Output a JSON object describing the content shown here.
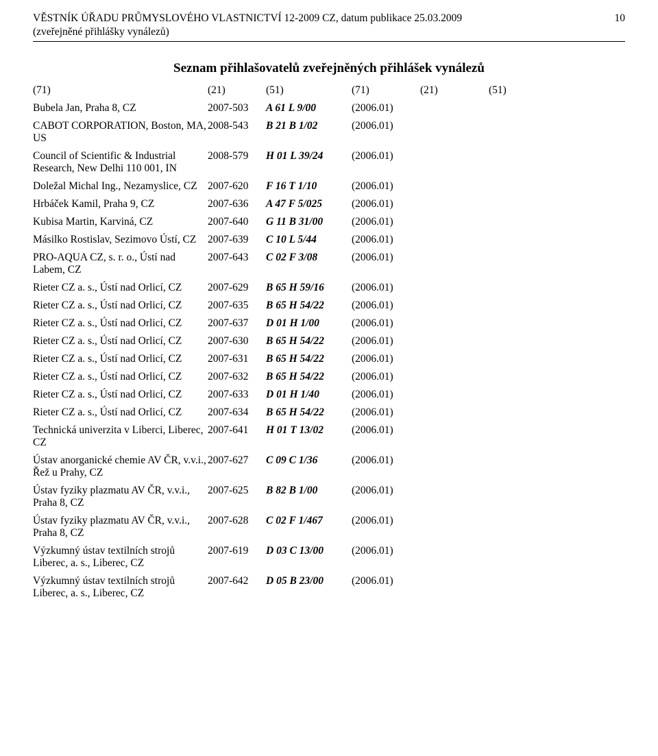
{
  "header": {
    "title": "VĚSTNÍK ÚŘADU PRŮMYSLOVÉHO VLASTNICTVÍ 12-2009 CZ, datum publikace 25.03.2009",
    "subtitle": "(zveřejněné přihlášky vynálezů)",
    "page_number": "10"
  },
  "section_title": "Seznam přihlašovatelů zveřejněných přihlášek vynálezů",
  "col_labels": [
    "(71)",
    "(21)",
    "(51)",
    "(71)",
    "(21)",
    "(51)"
  ],
  "rows": [
    {
      "name": "Bubela Jan, Praha 8, CZ",
      "appnum": "2007-503",
      "ipc": "A 61 L 9/00",
      "version": "(2006.01)"
    },
    {
      "name": "CABOT CORPORATION, Boston, MA, US",
      "appnum": "2008-543",
      "ipc": "B 21 B 1/02",
      "version": "(2006.01)"
    },
    {
      "name": "Council of Scientific & Industrial Research, New Delhi 110 001, IN",
      "appnum": "2008-579",
      "ipc": "H 01 L 39/24",
      "version": "(2006.01)"
    },
    {
      "name": "Doležal Michal Ing., Nezamyslice, CZ",
      "appnum": "2007-620",
      "ipc": "F 16 T 1/10",
      "version": "(2006.01)"
    },
    {
      "name": "Hrbáček Kamil, Praha 9, CZ",
      "appnum": "2007-636",
      "ipc": "A 47 F 5/025",
      "version": "(2006.01)"
    },
    {
      "name": "Kubisa Martin, Karviná, CZ",
      "appnum": "2007-640",
      "ipc": "G 11 B 31/00",
      "version": "(2006.01)"
    },
    {
      "name": "Másilko Rostislav, Sezimovo Ústí, CZ",
      "appnum": "2007-639",
      "ipc": "C 10 L 5/44",
      "version": "(2006.01)"
    },
    {
      "name": "PRO-AQUA CZ, s. r. o., Ústí nad Labem, CZ",
      "appnum": "2007-643",
      "ipc": "C 02 F 3/08",
      "version": "(2006.01)"
    },
    {
      "name": "Rieter CZ a. s., Ústí nad Orlicí, CZ",
      "appnum": "2007-629",
      "ipc": "B 65 H 59/16",
      "version": "(2006.01)"
    },
    {
      "name": "Rieter CZ a. s., Ústí nad Orlicí, CZ",
      "appnum": "2007-635",
      "ipc": "B 65 H 54/22",
      "version": "(2006.01)"
    },
    {
      "name": "Rieter CZ a. s., Ústí nad Orlicí, CZ",
      "appnum": "2007-637",
      "ipc": "D 01 H 1/00",
      "version": "(2006.01)"
    },
    {
      "name": "Rieter CZ a. s., Ústí nad Orlicí, CZ",
      "appnum": "2007-630",
      "ipc": "B 65 H 54/22",
      "version": "(2006.01)"
    },
    {
      "name": "Rieter CZ a. s., Ústí nad Orlicí, CZ",
      "appnum": "2007-631",
      "ipc": "B 65 H 54/22",
      "version": "(2006.01)"
    },
    {
      "name": "Rieter CZ a. s., Ústí nad Orlicí, CZ",
      "appnum": "2007-632",
      "ipc": "B 65 H 54/22",
      "version": "(2006.01)"
    },
    {
      "name": "Rieter CZ a. s., Ústí nad Orlicí, CZ",
      "appnum": "2007-633",
      "ipc": "D 01 H 1/40",
      "version": "(2006.01)"
    },
    {
      "name": "Rieter CZ a. s., Ústí nad Orlicí, CZ",
      "appnum": "2007-634",
      "ipc": "B 65 H 54/22",
      "version": "(2006.01)"
    },
    {
      "name": "Technická univerzita v Liberci, Liberec, CZ",
      "appnum": "2007-641",
      "ipc": "H 01 T 13/02",
      "version": "(2006.01)"
    },
    {
      "name": "Ústav anorganické chemie AV ČR, v.v.i., Řež u Prahy, CZ",
      "appnum": "2007-627",
      "ipc": "C 09 C 1/36",
      "version": "(2006.01)"
    },
    {
      "name": "Ústav fyziky plazmatu AV ČR, v.v.i., Praha 8, CZ",
      "appnum": "2007-625",
      "ipc": "B 82 B 1/00",
      "version": "(2006.01)"
    },
    {
      "name": "Ústav fyziky plazmatu AV ČR, v.v.i., Praha 8, CZ",
      "appnum": "2007-628",
      "ipc": "C 02 F 1/467",
      "version": "(2006.01)"
    },
    {
      "name": "Výzkumný ústav textilních strojů Liberec, a. s., Liberec, CZ",
      "appnum": "2007-619",
      "ipc": "D 03 C 13/00",
      "version": "(2006.01)"
    },
    {
      "name": "Výzkumný ústav textilních strojů Liberec, a. s., Liberec, CZ",
      "appnum": "2007-642",
      "ipc": "D 05 B 23/00",
      "version": "(2006.01)"
    }
  ]
}
